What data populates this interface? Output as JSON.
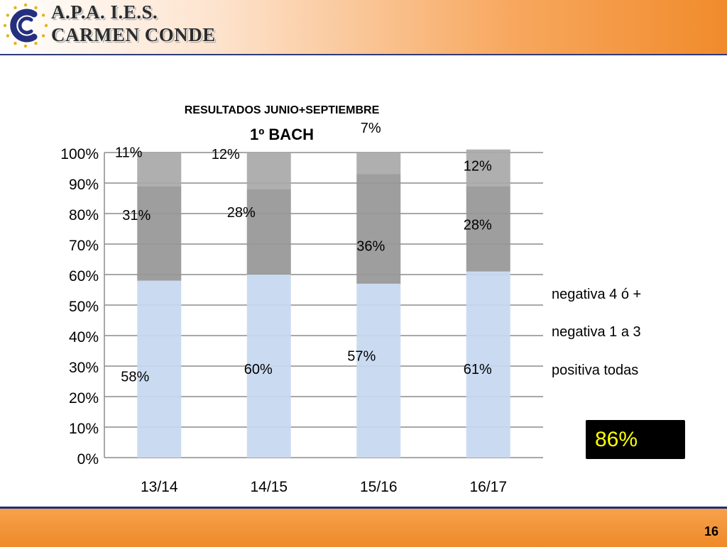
{
  "header": {
    "brand_line1": "A.P.A.  I.E.S.",
    "brand_line2": "CARMEN CONDE"
  },
  "footer": {
    "page_number": "16"
  },
  "badge": {
    "value": "86%"
  },
  "colors": {
    "positiva": "#c6d8f0",
    "negativa_1_3": "#979797",
    "negativa_4": "#a9a9a9",
    "grid": "#8c8c8c",
    "logo_blue": "#24307e",
    "logo_gold": "#e3b318"
  },
  "chart_data": {
    "type": "bar",
    "stacked": true,
    "title": "RESULTADOS JUNIO+SEPTIEMBRE",
    "subtitle": "1º BACH",
    "categories": [
      "13/14",
      "14/15",
      "15/16",
      "16/17"
    ],
    "series": [
      {
        "name": "positiva todas",
        "values": [
          58,
          60,
          57,
          61
        ],
        "labels": [
          "58%",
          "60%",
          "57%",
          "61%"
        ]
      },
      {
        "name": "negativa 1 a 3",
        "values": [
          31,
          28,
          36,
          28
        ],
        "labels": [
          "31%",
          "28%",
          "36%",
          "28%"
        ]
      },
      {
        "name": "negativa 4 ó +",
        "values": [
          11,
          12,
          7,
          12
        ],
        "labels": [
          "11%",
          "12%",
          "7%",
          "12%"
        ]
      }
    ],
    "ylim": [
      0,
      100
    ],
    "yticks": [
      "0%",
      "10%",
      "20%",
      "30%",
      "40%",
      "50%",
      "60%",
      "70%",
      "80%",
      "90%",
      "100%"
    ],
    "grid": true,
    "legend_position": "right"
  }
}
